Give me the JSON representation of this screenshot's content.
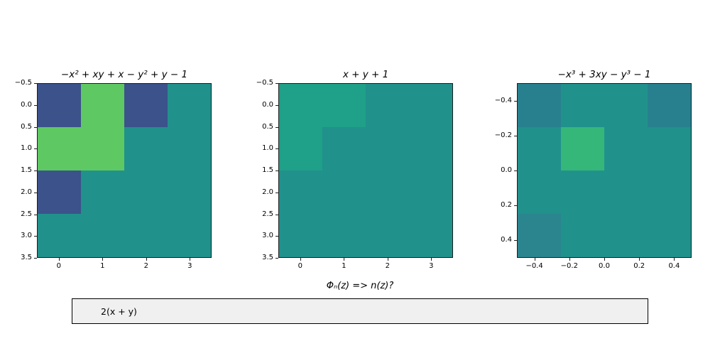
{
  "figure": {
    "background": "#ffffff"
  },
  "palette": {
    "teal": "#21918c",
    "dark_blue": "#3b528b",
    "green": "#5ec962",
    "light_teal": "#1fa088",
    "mid_green": "#35b779",
    "dark_teal": "#28808e",
    "dim_teal": "#2b858e"
  },
  "chart_data": [
    {
      "type": "heatmap",
      "title": "−x² + xy + x − y² + y − 1",
      "legend": "none",
      "grid_lines": "off",
      "x": {
        "range": [
          -0.5,
          3.5
        ],
        "tick_values": [
          0,
          1,
          2,
          3
        ],
        "tick_labels": [
          "0",
          "1",
          "2",
          "3"
        ]
      },
      "y": {
        "range": [
          -0.5,
          3.5
        ],
        "tick_values": [
          -0.5,
          0.0,
          0.5,
          1.0,
          1.5,
          2.0,
          2.5,
          3.0,
          3.5
        ],
        "tick_labels": [
          "−0.5",
          "0.0",
          "0.5",
          "1.0",
          "1.5",
          "2.0",
          "2.5",
          "3.0",
          "3.5"
        ]
      },
      "grid": [
        [
          "dark_blue",
          "green",
          "dark_blue",
          "teal"
        ],
        [
          "green",
          "green",
          "teal",
          "teal"
        ],
        [
          "dark_blue",
          "teal",
          "teal",
          "teal"
        ],
        [
          "teal",
          "teal",
          "teal",
          "teal"
        ]
      ]
    },
    {
      "type": "heatmap",
      "title": "x + y + 1",
      "legend": "none",
      "grid_lines": "off",
      "x": {
        "range": [
          -0.5,
          3.5
        ],
        "tick_values": [
          0,
          1,
          2,
          3
        ],
        "tick_labels": [
          "0",
          "1",
          "2",
          "3"
        ]
      },
      "y": {
        "range": [
          -0.5,
          3.5
        ],
        "tick_values": [
          -0.5,
          0.0,
          0.5,
          1.0,
          1.5,
          2.0,
          2.5,
          3.0,
          3.5
        ],
        "tick_labels": [
          "−0.5",
          "0.0",
          "0.5",
          "1.0",
          "1.5",
          "2.0",
          "2.5",
          "3.0",
          "3.5"
        ]
      },
      "grid": [
        [
          "light_teal",
          "light_teal",
          "teal",
          "teal"
        ],
        [
          "light_teal",
          "teal",
          "teal",
          "teal"
        ],
        [
          "teal",
          "teal",
          "teal",
          "teal"
        ],
        [
          "teal",
          "teal",
          "teal",
          "teal"
        ]
      ]
    },
    {
      "type": "heatmap",
      "title": "−x³ + 3xy − y³ − 1",
      "legend": "none",
      "grid_lines": "off",
      "x": {
        "range": [
          -0.5,
          0.5
        ],
        "tick_values": [
          -0.4,
          -0.2,
          0.0,
          0.2,
          0.4
        ],
        "tick_labels": [
          "−0.4",
          "−0.2",
          "0.0",
          "0.2",
          "0.4"
        ]
      },
      "y": {
        "range": [
          -0.5,
          0.5
        ],
        "tick_values": [
          -0.4,
          -0.2,
          0.0,
          0.2,
          0.4
        ],
        "tick_labels": [
          "−0.4",
          "−0.2",
          "0.0",
          "0.2",
          "0.4"
        ]
      },
      "grid": [
        [
          "dark_teal",
          "teal",
          "teal",
          "dark_teal"
        ],
        [
          "teal",
          "mid_green",
          "teal",
          "teal"
        ],
        [
          "teal",
          "teal",
          "teal",
          "teal"
        ],
        [
          "dim_teal",
          "teal",
          "teal",
          "teal"
        ]
      ]
    }
  ],
  "prompt": {
    "label": "Φₙ(z) => n(z)?",
    "input_value": "2(x + y)"
  }
}
